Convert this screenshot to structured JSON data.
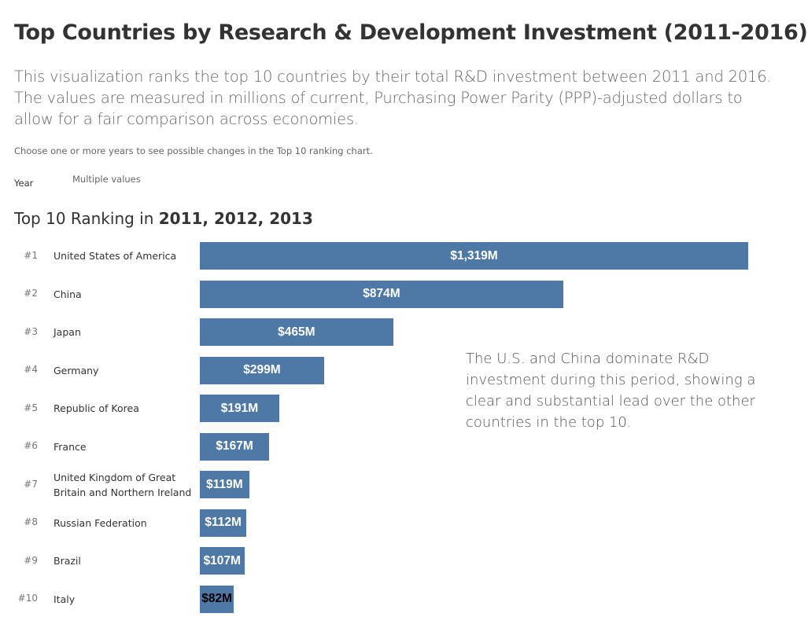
{
  "title": "Top Countries by Research & Development Investment (2011-2016)",
  "description": "This visualization ranks the top 10 countries by their total R&D investment between 2011 and 2016. The values are measured in millions of current, Purchasing Power Parity (PPP)-adjusted dollars to allow for a fair comparison across economies.",
  "hint": "Choose one or more years to see possible changes in the Top 10 ranking chart.",
  "filter": {
    "label": "Year",
    "value": "Multiple values"
  },
  "annotation": "The U.S. and China dominate R&D investment during this period, showing a clear and substantial lead over the other countries in the top 10.",
  "chart_data": {
    "type": "bar",
    "orientation": "horizontal",
    "title_prefix": "Top 10 Ranking in ",
    "title_years": "2011, 2012, 2013",
    "bar_color": "#4e79a7",
    "ranks": [
      "#1",
      "#2",
      "#3",
      "#4",
      "#5",
      "#6",
      "#7",
      "#8",
      "#9",
      "#10"
    ],
    "categories": [
      "United States of America",
      "China",
      "Japan",
      "Germany",
      "Republic of Korea",
      "France",
      "United Kingdom of Great Britain and Northern Ireland",
      "Russian Federation",
      "Brazil",
      "Italy"
    ],
    "values": [
      1319,
      874,
      465,
      299,
      191,
      167,
      119,
      112,
      107,
      82
    ],
    "labels": [
      "$1,319M",
      "$874M",
      "$465M",
      "$299M",
      "$191M",
      "$167M",
      "$119M",
      "$112M",
      "$107M",
      "$82M"
    ],
    "unit": "millions of PPP dollars"
  }
}
